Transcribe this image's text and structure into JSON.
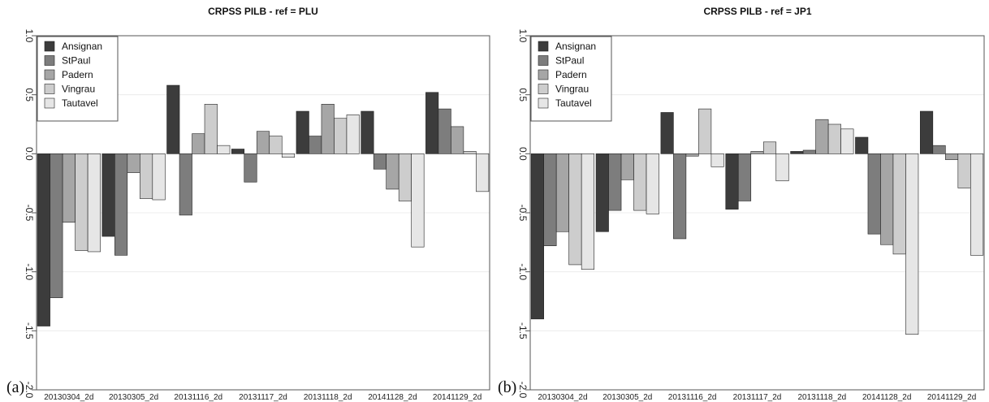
{
  "colors": {
    "Ansignan": "#3c3c3c",
    "StPaul": "#7d7d7d",
    "Padern": "#a6a6a6",
    "Vingrau": "#cdcdcd",
    "Tautavel": "#e6e6e6"
  },
  "chart_data": [
    {
      "type": "bar",
      "panel_label": "(a)",
      "title": "CRPSS PILB - ref = PLU",
      "categories": [
        "20130304_2d",
        "20130305_2d",
        "20131116_2d",
        "20131117_2d",
        "20131118_2d",
        "20141128_2d",
        "20141129_2d"
      ],
      "series": [
        {
          "name": "Ansignan",
          "values": [
            -1.46,
            -0.7,
            0.58,
            0.04,
            0.36,
            0.36,
            0.52
          ]
        },
        {
          "name": "StPaul",
          "values": [
            -1.22,
            -0.86,
            -0.52,
            -0.24,
            0.15,
            -0.13,
            0.38
          ]
        },
        {
          "name": "Padern",
          "values": [
            -0.58,
            -0.16,
            0.17,
            0.19,
            0.42,
            -0.3,
            0.23
          ]
        },
        {
          "name": "Vingrau",
          "values": [
            -0.82,
            -0.38,
            0.42,
            0.15,
            0.3,
            -0.4,
            0.02
          ]
        },
        {
          "name": "Tautavel",
          "values": [
            -0.83,
            -0.39,
            0.07,
            -0.03,
            0.33,
            -0.79,
            -0.32
          ]
        }
      ],
      "ylim": [
        -2.0,
        1.0
      ],
      "yticks": [
        "-2.0",
        "-1.5",
        "-1.0",
        "-0.5",
        "0.0",
        "0.5",
        "1.0"
      ],
      "legend": "top-left",
      "grid": true
    },
    {
      "type": "bar",
      "panel_label": "(b)",
      "title": "CRPSS PILB - ref = JP1",
      "categories": [
        "20130304_2d",
        "20130305_2d",
        "20131116_2d",
        "20131117_2d",
        "20131118_2d",
        "20141128_2d",
        "20141129_2d"
      ],
      "series": [
        {
          "name": "Ansignan",
          "values": [
            -1.4,
            -0.66,
            0.35,
            -0.47,
            0.02,
            0.14,
            0.36
          ]
        },
        {
          "name": "StPaul",
          "values": [
            -0.78,
            -0.48,
            -0.72,
            -0.4,
            0.03,
            -0.68,
            0.07
          ]
        },
        {
          "name": "Padern",
          "values": [
            -0.66,
            -0.22,
            -0.02,
            0.02,
            0.29,
            -0.77,
            -0.05
          ]
        },
        {
          "name": "Vingrau",
          "values": [
            -0.94,
            -0.48,
            0.38,
            0.1,
            0.25,
            -0.85,
            -0.29
          ]
        },
        {
          "name": "Tautavel",
          "values": [
            -0.98,
            -0.51,
            -0.11,
            -0.23,
            0.21,
            -1.53,
            -0.86
          ]
        }
      ],
      "ylim": [
        -2.0,
        1.0
      ],
      "yticks": [
        "-2.0",
        "-1.5",
        "-1.0",
        "-0.5",
        "0.0",
        "0.5",
        "1.0"
      ],
      "legend": "top-left",
      "grid": true
    }
  ]
}
